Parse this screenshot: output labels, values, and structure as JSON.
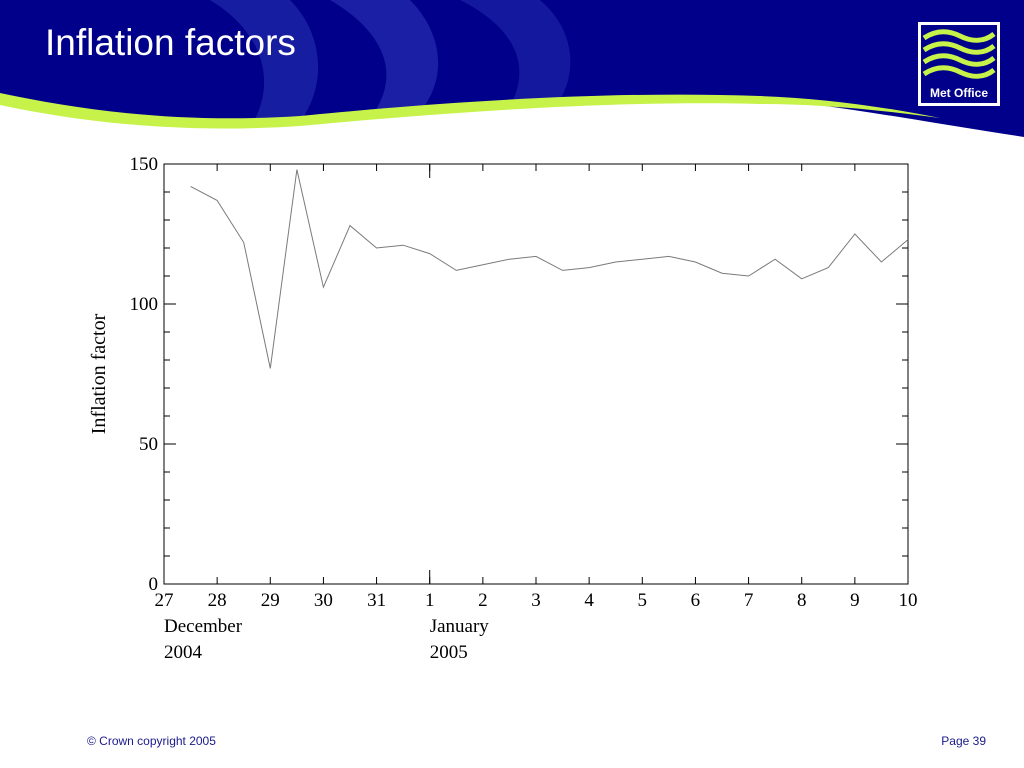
{
  "slide": {
    "title": "Inflation factors",
    "logo_text": "Met Office",
    "footer_copyright": "© Crown copyright 2005",
    "footer_page": "Page 39"
  },
  "colors": {
    "banner_dark": "#00008b",
    "banner_mid": "#2a35b5",
    "accent_green": "#c6f24a",
    "line": "#7a7a7a",
    "footer_text": "#1a1a8c"
  },
  "chart_data": {
    "type": "line",
    "title": "",
    "xlabel": "",
    "ylabel": "Inflation factor",
    "ylim": [
      0,
      150
    ],
    "xlim": [
      27,
      41
    ],
    "grid": false,
    "yticks": [
      0,
      50,
      100,
      150
    ],
    "xtick_labels": [
      "27",
      "28",
      "29",
      "30",
      "31",
      "1",
      "2",
      "3",
      "4",
      "5",
      "6",
      "7",
      "8",
      "9",
      "10"
    ],
    "month_labels": [
      {
        "line1": "December",
        "line2": "2004"
      },
      {
        "line1": "January",
        "line2": "2005"
      }
    ],
    "series": [
      {
        "x": [
          27.5,
          28.0,
          28.5,
          29.0,
          29.5,
          30.0,
          30.5,
          31.0,
          31.5,
          32.0,
          32.5,
          33.0,
          33.5,
          34.0,
          34.5,
          35.0,
          35.5,
          36.0,
          36.5,
          37.0,
          37.5,
          38.0,
          38.5,
          39.0,
          39.5,
          40.0,
          40.5,
          41.0
        ],
        "values": [
          142,
          137,
          122,
          77,
          148,
          106,
          128,
          120,
          121,
          118,
          112,
          114,
          116,
          117,
          112,
          113,
          115,
          116,
          117,
          115,
          111,
          110,
          116,
          109,
          113,
          125,
          115,
          123
        ]
      }
    ]
  }
}
